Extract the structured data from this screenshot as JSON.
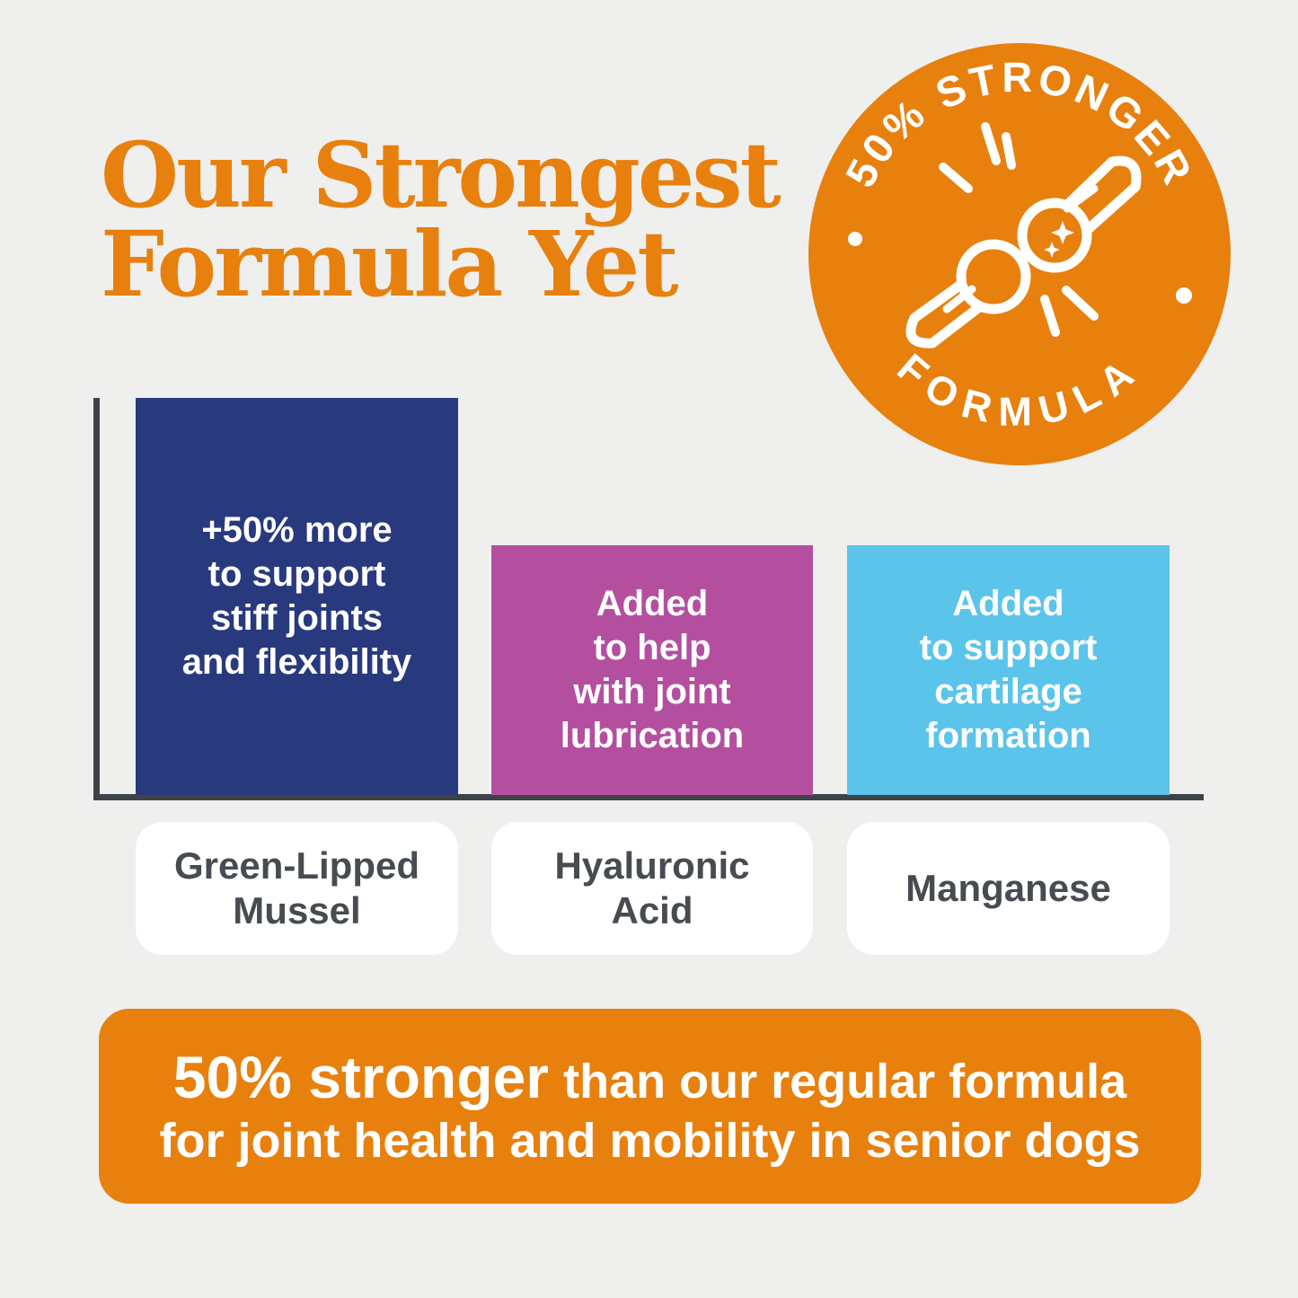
{
  "page": {
    "background": "#efefee"
  },
  "title": {
    "text": "Our Strongest\nFormula Yet",
    "color": "#e8800e"
  },
  "badge": {
    "arc_top": "50% STRONGER",
    "arc_bottom": "FORMULA",
    "bg_color": "#e8800e",
    "icon": "bone-joint-icon"
  },
  "chart": {
    "axis_color": "#3e434a",
    "bars": [
      {
        "annotation": "+50% more\nto support\nstiff joints\nand flexibility",
        "label": "Green-Lipped\nMussel",
        "color": "#29397e"
      },
      {
        "annotation": "Added\nto help\nwith joint\nlubrication",
        "label": "Hyaluronic\nAcid",
        "color": "#b44fa0"
      },
      {
        "annotation": "Added\nto support\ncartilage\nformation",
        "label": "Manganese",
        "color": "#5bc4ea"
      }
    ]
  },
  "chart_data": {
    "type": "bar",
    "title": "Our Strongest Formula Yet",
    "categories": [
      "Green-Lipped Mussel",
      "Hyaluronic Acid",
      "Manganese"
    ],
    "values": [
      100,
      63,
      63
    ],
    "value_note": "relative bar height, tallest bar = 100",
    "annotations": [
      "+50% more to support stiff joints and flexibility",
      "Added to help with joint lubrication",
      "Added to support cartilage formation"
    ],
    "bar_colors": [
      "#29397e",
      "#b44fa0",
      "#5bc4ea"
    ],
    "xlabel": "",
    "ylabel": "",
    "ylim": [
      0,
      100
    ],
    "grid": false,
    "legend": false
  },
  "banner": {
    "line1_bold": "50% stronger",
    "line1_rest": "than our regular formula",
    "line2": "for joint health and mobility in senior dogs",
    "bg_color": "#e8800e",
    "text_color": "#ffffff"
  }
}
